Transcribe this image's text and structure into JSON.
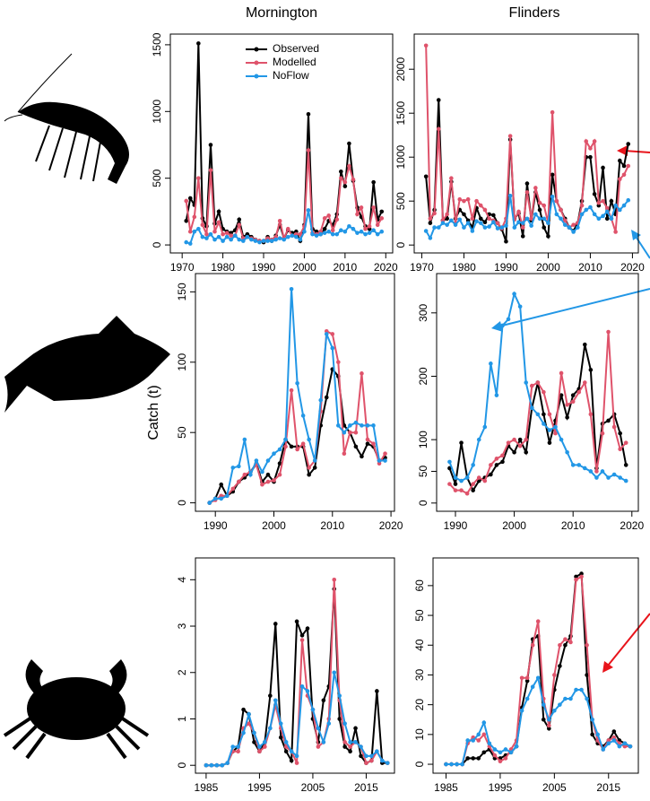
{
  "column_titles": [
    "Mornington",
    "Flinders"
  ],
  "y_label": "Catch (t)",
  "chart_data": [
    {
      "type": "line",
      "legend": "top",
      "x": [
        1971,
        1972,
        1973,
        1974,
        1975,
        1976,
        1977,
        1978,
        1979,
        1980,
        1981,
        1982,
        1983,
        1984,
        1985,
        1986,
        1987,
        1988,
        1989,
        1990,
        1991,
        1992,
        1993,
        1994,
        1995,
        1996,
        1997,
        1998,
        1999,
        2000,
        2001,
        2002,
        2003,
        2004,
        2005,
        2006,
        2007,
        2008,
        2009,
        2010,
        2011,
        2012,
        2013,
        2014,
        2015,
        2016,
        2017,
        2018,
        2019
      ],
      "series": [
        {
          "name": "Observed",
          "color": "#000000",
          "values": [
            180,
            350,
            300,
            1510,
            200,
            140,
            750,
            160,
            250,
            120,
            100,
            90,
            110,
            190,
            60,
            80,
            60,
            40,
            30,
            20,
            60,
            30,
            70,
            150,
            50,
            110,
            90,
            100,
            30,
            150,
            980,
            120,
            100,
            80,
            120,
            180,
            150,
            230,
            550,
            440,
            760,
            480,
            280,
            210,
            140,
            120,
            470,
            190,
            250
          ]
        },
        {
          "name": "Modelled",
          "color": "#df536b",
          "values": [
            330,
            100,
            210,
            500,
            150,
            80,
            560,
            100,
            170,
            80,
            90,
            70,
            70,
            150,
            50,
            60,
            50,
            40,
            30,
            30,
            50,
            40,
            60,
            180,
            50,
            120,
            70,
            80,
            80,
            140,
            710,
            90,
            80,
            100,
            200,
            220,
            110,
            190,
            500,
            470,
            590,
            490,
            230,
            280,
            120,
            140,
            280,
            150,
            200
          ]
        },
        {
          "name": "NoFlow",
          "color": "#2297e6",
          "values": [
            20,
            10,
            100,
            120,
            60,
            50,
            80,
            40,
            60,
            30,
            60,
            40,
            70,
            40,
            30,
            60,
            40,
            30,
            20,
            30,
            30,
            30,
            40,
            50,
            40,
            60,
            70,
            60,
            40,
            100,
            260,
            80,
            70,
            80,
            90,
            100,
            80,
            80,
            110,
            100,
            140,
            120,
            90,
            100,
            80,
            90,
            110,
            80,
            100
          ]
        }
      ],
      "xlim": [
        1967.1,
        2021.7
      ],
      "ylim": [
        -60,
        1580
      ],
      "xticks": [
        1970,
        1980,
        1990,
        2000,
        2010,
        2020
      ],
      "yticks": [
        0,
        500,
        1000,
        1500
      ]
    },
    {
      "type": "line",
      "x": [
        1971,
        1972,
        1973,
        1974,
        1975,
        1976,
        1977,
        1978,
        1979,
        1980,
        1981,
        1982,
        1983,
        1984,
        1985,
        1986,
        1987,
        1988,
        1989,
        1990,
        1991,
        1992,
        1993,
        1994,
        1995,
        1996,
        1997,
        1998,
        1999,
        2000,
        2001,
        2002,
        2003,
        2004,
        2005,
        2006,
        2007,
        2008,
        2009,
        2010,
        2011,
        2012,
        2013,
        2014,
        2015,
        2016,
        2017,
        2018,
        2019
      ],
      "series": [
        {
          "color": "#000000",
          "values": [
            780,
            250,
            400,
            1650,
            280,
            300,
            720,
            300,
            400,
            350,
            280,
            200,
            420,
            300,
            260,
            350,
            340,
            250,
            180,
            40,
            1200,
            300,
            360,
            100,
            700,
            280,
            600,
            400,
            200,
            100,
            800,
            500,
            400,
            300,
            200,
            160,
            250,
            500,
            1000,
            1000,
            580,
            450,
            880,
            300,
            500,
            350,
            960,
            900,
            1150
          ]
        },
        {
          "color": "#df536b",
          "values": [
            2270,
            300,
            360,
            1320,
            280,
            350,
            760,
            250,
            520,
            500,
            520,
            300,
            500,
            450,
            400,
            300,
            280,
            250,
            190,
            300,
            1240,
            290,
            380,
            200,
            600,
            300,
            650,
            480,
            450,
            250,
            1510,
            500,
            400,
            280,
            200,
            230,
            250,
            450,
            1180,
            1100,
            1180,
            480,
            500,
            420,
            300,
            150,
            750,
            800,
            900
          ]
        },
        {
          "color": "#2297e6",
          "values": [
            160,
            80,
            200,
            200,
            250,
            230,
            280,
            230,
            290,
            200,
            250,
            160,
            270,
            250,
            200,
            210,
            260,
            190,
            200,
            220,
            560,
            200,
            260,
            250,
            300,
            220,
            350,
            300,
            300,
            250,
            550,
            350,
            300,
            230,
            200,
            150,
            200,
            350,
            400,
            430,
            350,
            300,
            330,
            380,
            300,
            450,
            400,
            450,
            510
          ]
        }
      ],
      "xlim": [
        1968.2,
        2021.4
      ],
      "ylim": [
        -90,
        2400
      ],
      "xticks": [
        1970,
        1980,
        1990,
        2000,
        2010,
        2020
      ],
      "yticks": [
        0,
        500,
        1000,
        1500,
        2000
      ]
    },
    {
      "type": "line",
      "x": [
        1989,
        1990,
        1991,
        1992,
        1993,
        1994,
        1995,
        1996,
        1997,
        1998,
        1999,
        2000,
        2001,
        2002,
        2003,
        2004,
        2005,
        2006,
        2007,
        2008,
        2009,
        2010,
        2011,
        2012,
        2013,
        2014,
        2015,
        2016,
        2017,
        2018,
        2019
      ],
      "series": [
        {
          "color": "#000000",
          "values": [
            0,
            3,
            13,
            5,
            8,
            15,
            18,
            22,
            28,
            15,
            20,
            15,
            28,
            45,
            40,
            40,
            40,
            20,
            25,
            55,
            75,
            95,
            90,
            55,
            50,
            40,
            33,
            42,
            40,
            30,
            32
          ]
        },
        {
          "color": "#df536b",
          "values": [
            0,
            2,
            5,
            5,
            10,
            15,
            20,
            22,
            27,
            13,
            15,
            16,
            20,
            40,
            80,
            38,
            42,
            25,
            30,
            65,
            122,
            120,
            100,
            35,
            50,
            50,
            92,
            45,
            42,
            28,
            35
          ]
        },
        {
          "color": "#2297e6",
          "values": [
            0,
            3,
            3,
            5,
            25,
            26,
            45,
            20,
            30,
            22,
            30,
            35,
            38,
            45,
            152,
            85,
            62,
            45,
            30,
            73,
            120,
            110,
            55,
            50,
            55,
            57,
            55,
            55,
            55,
            30,
            30
          ]
        }
      ],
      "xlim": [
        1986.6,
        2020.6
      ],
      "ylim": [
        -6,
        163
      ],
      "xticks": [
        1990,
        2000,
        2010,
        2020
      ],
      "yticks": [
        0,
        50,
        100,
        150
      ]
    },
    {
      "type": "line",
      "x": [
        1989,
        1990,
        1991,
        1992,
        1993,
        1994,
        1995,
        1996,
        1997,
        1998,
        1999,
        2000,
        2001,
        2002,
        2003,
        2004,
        2005,
        2006,
        2007,
        2008,
        2009,
        2010,
        2011,
        2012,
        2013,
        2014,
        2015,
        2016,
        2017,
        2018,
        2019
      ],
      "series": [
        {
          "color": "#000000",
          "values": [
            55,
            30,
            95,
            40,
            20,
            35,
            40,
            45,
            60,
            65,
            90,
            80,
            100,
            80,
            150,
            190,
            140,
            95,
            130,
            170,
            135,
            170,
            180,
            250,
            210,
            55,
            125,
            130,
            140,
            110,
            60
          ]
        },
        {
          "color": "#df536b",
          "values": [
            30,
            20,
            20,
            15,
            30,
            40,
            35,
            60,
            70,
            75,
            95,
            100,
            90,
            100,
            185,
            190,
            175,
            140,
            110,
            205,
            155,
            160,
            175,
            190,
            140,
            50,
            110,
            270,
            120,
            85,
            95
          ]
        },
        {
          "color": "#2297e6",
          "values": [
            65,
            40,
            35,
            40,
            60,
            100,
            120,
            220,
            170,
            280,
            290,
            330,
            310,
            190,
            150,
            140,
            125,
            115,
            120,
            100,
            80,
            60,
            60,
            55,
            50,
            40,
            50,
            40,
            45,
            40,
            35
          ]
        }
      ],
      "xlim": [
        1986.8,
        2021.1
      ],
      "ylim": [
        -13,
        362
      ],
      "xticks": [
        1990,
        2000,
        2010,
        2020
      ],
      "yticks": [
        0,
        50,
        100,
        200,
        300
      ]
    },
    {
      "type": "line",
      "x": [
        1985,
        1986,
        1987,
        1988,
        1989,
        1990,
        1991,
        1992,
        1993,
        1994,
        1995,
        1996,
        1997,
        1998,
        1999,
        2000,
        2001,
        2002,
        2003,
        2004,
        2005,
        2006,
        2007,
        2008,
        2009,
        2010,
        2011,
        2012,
        2013,
        2014,
        2015,
        2016,
        2017,
        2018,
        2019
      ],
      "series": [
        {
          "color": "#000000",
          "values": [
            0,
            0,
            0,
            0,
            0.05,
            0.3,
            0.4,
            1.2,
            1.1,
            0.5,
            0.3,
            0.5,
            1.5,
            3.05,
            0.6,
            0.3,
            0.1,
            3.1,
            2.8,
            2.95,
            1.0,
            0.5,
            1.4,
            1.7,
            3.8,
            1.0,
            0.4,
            0.3,
            0.8,
            0.2,
            0.05,
            0.1,
            1.6,
            0.05,
            0.05
          ]
        },
        {
          "color": "#df536b",
          "values": [
            0,
            0,
            0,
            0,
            0.05,
            0.3,
            0.3,
            0.8,
            0.9,
            0.7,
            0.3,
            0.4,
            0.8,
            1.3,
            0.8,
            0.4,
            0.3,
            0.05,
            2.7,
            1.5,
            1.2,
            0.4,
            0.5,
            1.0,
            4.0,
            1.4,
            0.5,
            0.4,
            0.5,
            0.4,
            0.05,
            0.1,
            0.3,
            0.1,
            0.05
          ]
        },
        {
          "color": "#2297e6",
          "values": [
            0,
            0,
            0,
            0,
            0.05,
            0.4,
            0.4,
            0.7,
            1.1,
            0.7,
            0.4,
            0.5,
            0.8,
            1.4,
            0.9,
            0.5,
            0.3,
            0.2,
            1.7,
            1.6,
            1.2,
            0.8,
            0.5,
            0.9,
            2.0,
            1.5,
            0.9,
            0.5,
            0.5,
            0.4,
            0.2,
            0.2,
            0.3,
            0.1,
            0.05
          ]
        }
      ],
      "xlim": [
        1983,
        2020.3
      ],
      "ylim": [
        -0.17,
        4.47
      ],
      "xticks": [
        1985,
        1995,
        2005,
        2015
      ],
      "yticks": [
        0,
        1,
        2,
        3,
        4
      ]
    },
    {
      "type": "line",
      "x": [
        1985,
        1986,
        1987,
        1988,
        1989,
        1990,
        1991,
        1992,
        1993,
        1994,
        1995,
        1996,
        1997,
        1998,
        1999,
        2000,
        2001,
        2002,
        2003,
        2004,
        2005,
        2006,
        2007,
        2008,
        2009,
        2010,
        2011,
        2012,
        2013,
        2014,
        2015,
        2016,
        2017,
        2018,
        2019
      ],
      "series": [
        {
          "color": "#000000",
          "values": [
            0,
            0,
            0,
            0,
            2,
            2,
            2,
            4,
            5,
            2,
            2,
            3,
            4,
            6,
            19,
            28,
            42,
            43,
            15,
            12,
            25,
            33,
            40,
            43,
            63,
            64,
            30,
            10,
            7,
            6,
            8,
            11,
            8,
            7,
            6
          ]
        },
        {
          "color": "#df536b",
          "values": [
            0,
            0,
            0,
            0,
            7,
            9,
            8,
            10,
            6,
            3,
            1,
            2,
            5,
            8,
            29,
            29,
            40,
            48,
            22,
            13,
            30,
            40,
            42,
            41,
            62,
            63,
            40,
            15,
            8,
            5,
            8,
            9,
            7,
            6,
            6
          ]
        },
        {
          "color": "#2297e6",
          "values": [
            0,
            0,
            0,
            0,
            8,
            8,
            10,
            14,
            7,
            5,
            4,
            5,
            4,
            6,
            18,
            22,
            26,
            29,
            20,
            15,
            18,
            20,
            22,
            22,
            25,
            25,
            22,
            15,
            10,
            5,
            7,
            8,
            6,
            7,
            6
          ]
        }
      ],
      "xlim": [
        1982.6,
        2020.5
      ],
      "ylim": [
        -3,
        69.3
      ],
      "xticks": [
        1985,
        1995,
        2005,
        2015
      ],
      "yticks": [
        0,
        10,
        20,
        30,
        40,
        50,
        60
      ]
    }
  ]
}
